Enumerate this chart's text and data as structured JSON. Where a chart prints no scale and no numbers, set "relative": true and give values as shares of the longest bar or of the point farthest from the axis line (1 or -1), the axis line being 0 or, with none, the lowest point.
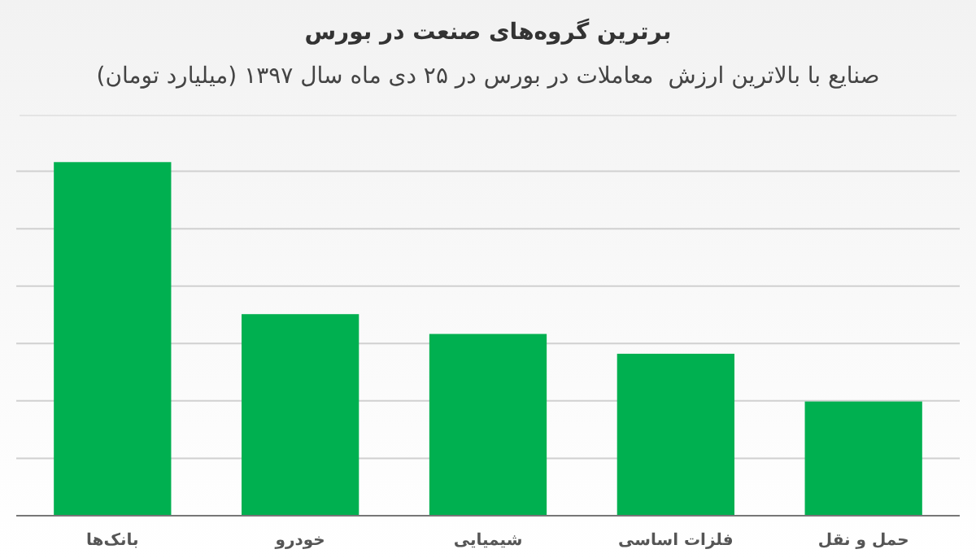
{
  "chart_data": {
    "type": "bar",
    "title": "برترین گروه‌های صنعت در بورس",
    "subtitle": "صنایع با بالاترین ارزش  معاملات در بورس در ۲۵ دی ماه سال ۱۳۹۷ (میلیارد تومان)",
    "categories": [
      "بانک‌ها",
      "خودرو",
      "شیمیایی",
      "فلزات اساسی",
      "حمل و نقل"
    ],
    "values": [
      1,
      0.57,
      0.514,
      0.458,
      0.323
    ],
    "color": "#00b050",
    "relative": true,
    "grid": true
  }
}
